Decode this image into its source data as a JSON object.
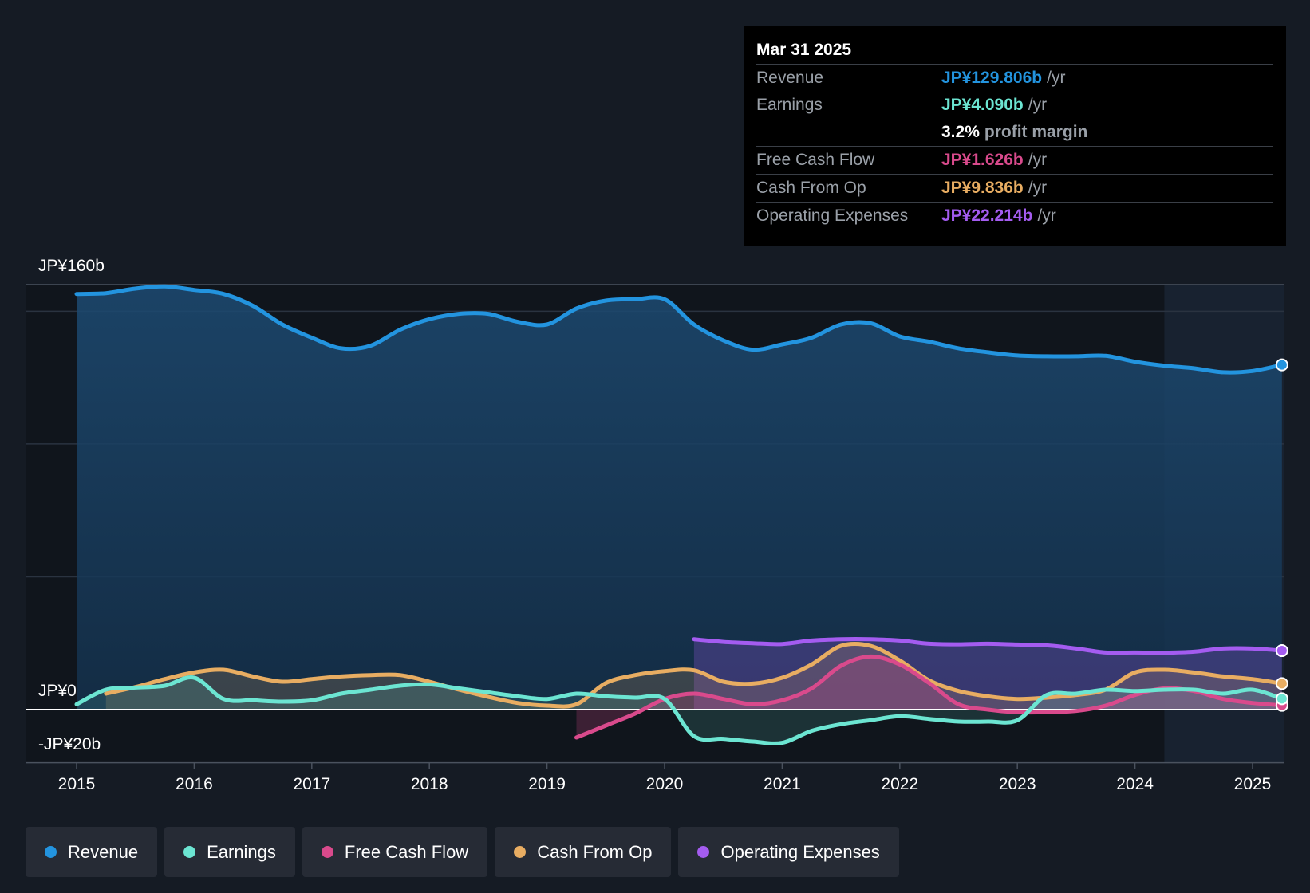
{
  "tooltip": {
    "date": "Mar 31 2025",
    "rows": {
      "revenue": {
        "label": "Revenue",
        "value": "JP¥129.806b",
        "unit": "/yr"
      },
      "earnings": {
        "label": "Earnings",
        "value": "JP¥4.090b",
        "unit": "/yr"
      },
      "margin": {
        "value": "3.2%",
        "unit": "profit margin"
      },
      "fcf": {
        "label": "Free Cash Flow",
        "value": "JP¥1.626b",
        "unit": "/yr"
      },
      "cfo": {
        "label": "Cash From Op",
        "value": "JP¥9.836b",
        "unit": "/yr"
      },
      "opex": {
        "label": "Operating Expenses",
        "value": "JP¥22.214b",
        "unit": "/yr"
      }
    }
  },
  "legend": [
    "Revenue",
    "Earnings",
    "Free Cash Flow",
    "Cash From Op",
    "Operating Expenses"
  ],
  "colors": {
    "revenue": "#2394df",
    "earnings": "#6ce5d2",
    "fcf": "#d94a8c",
    "cfo": "#e8ad62",
    "opex": "#a45cf0"
  },
  "chart_data": {
    "type": "line",
    "title": "",
    "y_axis_labels": [
      "JP¥160b",
      "JP¥0",
      "-JP¥20b"
    ],
    "ylim": [
      -20,
      160
    ],
    "x_ticks": [
      "2015",
      "2016",
      "2017",
      "2018",
      "2019",
      "2020",
      "2021",
      "2022",
      "2023",
      "2024",
      "2025"
    ],
    "x_range": [
      2014.56,
      2025.25
    ],
    "forecast_region_start": 2024.25,
    "series": [
      {
        "name": "Revenue",
        "key": "revenue",
        "x": [
          2015.0,
          2015.25,
          2015.5,
          2015.75,
          2016.0,
          2016.25,
          2016.5,
          2016.75,
          2017.0,
          2017.25,
          2017.5,
          2017.75,
          2018.0,
          2018.25,
          2018.5,
          2018.75,
          2019.0,
          2019.25,
          2019.5,
          2019.75,
          2020.0,
          2020.25,
          2020.5,
          2020.75,
          2021.0,
          2021.25,
          2021.5,
          2021.75,
          2022.0,
          2022.25,
          2022.5,
          2022.75,
          2023.0,
          2023.25,
          2023.5,
          2023.75,
          2024.0,
          2024.25,
          2024.5,
          2024.75,
          2025.0,
          2025.25
        ],
        "values": [
          156.5,
          156.8,
          158.5,
          159.3,
          158,
          156.5,
          152,
          145,
          140,
          136,
          137,
          143,
          147,
          149,
          149,
          146,
          145,
          151,
          154,
          154.5,
          154.5,
          145,
          139,
          135.5,
          137.5,
          140,
          145,
          145.5,
          140.5,
          138.5,
          136,
          134.5,
          133.3,
          133,
          133,
          133.2,
          131,
          129.5,
          128.5,
          127,
          127.5,
          129.8
        ]
      },
      {
        "name": "Earnings",
        "key": "earnings",
        "x": [
          2015.0,
          2015.25,
          2015.5,
          2015.75,
          2016.0,
          2016.25,
          2016.5,
          2016.75,
          2017.0,
          2017.25,
          2017.5,
          2017.75,
          2018.0,
          2018.25,
          2018.5,
          2018.75,
          2019.0,
          2019.25,
          2019.5,
          2019.75,
          2020.0,
          2020.25,
          2020.5,
          2020.75,
          2021.0,
          2021.25,
          2021.5,
          2021.75,
          2022.0,
          2022.25,
          2022.5,
          2022.75,
          2023.0,
          2023.25,
          2023.5,
          2023.75,
          2024.0,
          2024.25,
          2024.5,
          2024.75,
          2025.0,
          2025.25
        ],
        "values": [
          2,
          7.5,
          8.3,
          9,
          12,
          4,
          3.5,
          3,
          3.5,
          6,
          7.5,
          9,
          9.5,
          8,
          6.5,
          5,
          4,
          6,
          5,
          4.5,
          4,
          -10,
          -11,
          -12,
          -12.5,
          -8,
          -5.5,
          -4,
          -2.5,
          -3.5,
          -4.5,
          -4.5,
          -4,
          5.5,
          6,
          7.5,
          7,
          7.5,
          7.5,
          6,
          7.5,
          4.1
        ]
      },
      {
        "name": "Free Cash Flow",
        "key": "fcf",
        "x": [
          2019.25,
          2019.5,
          2019.75,
          2020.0,
          2020.25,
          2020.5,
          2020.75,
          2021.0,
          2021.25,
          2021.5,
          2021.75,
          2022.0,
          2022.25,
          2022.5,
          2022.75,
          2023.0,
          2023.25,
          2023.5,
          2023.75,
          2024.0,
          2024.25,
          2024.5,
          2024.75,
          2025.0,
          2025.25
        ],
        "values": [
          -10.5,
          -6,
          -1.5,
          4,
          6,
          4,
          2,
          3.5,
          8,
          16.5,
          20,
          17,
          10,
          2,
          0,
          -1,
          -1,
          -0.5,
          1.5,
          5.5,
          8,
          7,
          4,
          2.5,
          1.6
        ]
      },
      {
        "name": "Cash From Op",
        "key": "cfo",
        "x": [
          2015.25,
          2015.5,
          2015.75,
          2016.0,
          2016.25,
          2016.5,
          2016.75,
          2017.0,
          2017.25,
          2017.5,
          2017.75,
          2018.0,
          2018.25,
          2018.5,
          2018.75,
          2019.0,
          2019.25,
          2019.5,
          2019.75,
          2020.0,
          2020.25,
          2020.5,
          2020.75,
          2021.0,
          2021.25,
          2021.5,
          2021.75,
          2022.0,
          2022.25,
          2022.5,
          2022.75,
          2023.0,
          2023.25,
          2023.5,
          2023.75,
          2024.0,
          2024.25,
          2024.5,
          2024.75,
          2025.0,
          2025.25
        ],
        "values": [
          6,
          8.5,
          11.5,
          14,
          15,
          12.5,
          10.5,
          11.5,
          12.5,
          13,
          13,
          10.5,
          7.5,
          4.8,
          2.5,
          1.5,
          2,
          10,
          13,
          14.5,
          14.8,
          10.5,
          9.8,
          12,
          17,
          24,
          24,
          18.5,
          11,
          7,
          5,
          4,
          4.5,
          5.5,
          7.5,
          14,
          15,
          14,
          12.5,
          11.5,
          9.8
        ]
      },
      {
        "name": "Operating Expenses",
        "key": "opex",
        "x": [
          2020.25,
          2020.5,
          2020.75,
          2021.0,
          2021.25,
          2021.5,
          2021.75,
          2022.0,
          2022.25,
          2022.5,
          2022.75,
          2023.0,
          2023.25,
          2023.5,
          2023.75,
          2024.0,
          2024.25,
          2024.5,
          2024.75,
          2025.0,
          2025.25
        ],
        "values": [
          26.5,
          25.5,
          25,
          24.7,
          26,
          26.5,
          26.5,
          26,
          24.8,
          24.6,
          24.8,
          24.5,
          24.2,
          23,
          21.5,
          21.5,
          21.4,
          21.8,
          23,
          23,
          22.2
        ]
      }
    ]
  }
}
